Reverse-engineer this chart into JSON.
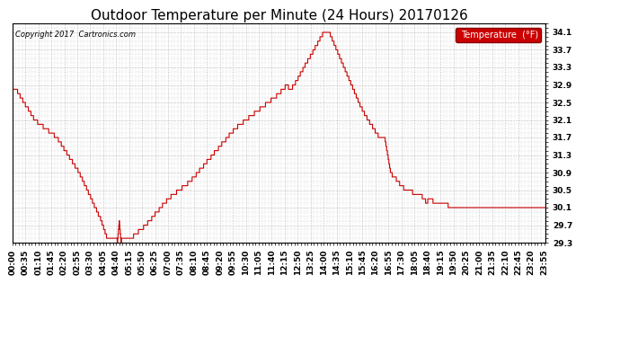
{
  "title": "Outdoor Temperature per Minute (24 Hours) 20170126",
  "copyright_text": "Copyright 2017  Cartronics.com",
  "legend_label": "Temperature  (°F)",
  "legend_bg": "#cc0000",
  "legend_text_color": "#ffffff",
  "line_color": "#cc0000",
  "bg_color": "#ffffff",
  "plot_bg_color": "#ffffff",
  "grid_color": "#bbbbbb",
  "ylim": [
    29.3,
    34.3
  ],
  "yticks": [
    29.3,
    29.7,
    30.1,
    30.5,
    30.9,
    31.3,
    31.7,
    32.1,
    32.5,
    32.9,
    33.3,
    33.7,
    34.1
  ],
  "title_fontsize": 11,
  "tick_fontsize": 6.5,
  "num_minutes": 1440,
  "x_tick_step": 35
}
